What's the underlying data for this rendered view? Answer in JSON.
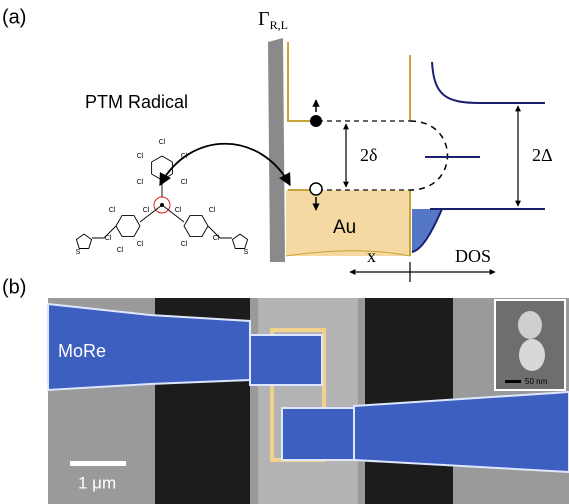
{
  "panel_a": {
    "label": "(a)",
    "gamma_label": "Γ",
    "gamma_subscript": "R,L",
    "molecule_name": "PTM Radical",
    "small_gap": "2δ",
    "big_gap": "2Δ",
    "electrode": "Au",
    "x_axis": "x",
    "dos_axis": "DOS",
    "molecule_atoms": [
      "Cl",
      "Cl",
      "Cl",
      "Cl",
      "Cl",
      "Cl",
      "Cl",
      "Cl",
      "Cl",
      "Cl",
      "Cl",
      "Cl",
      "Cl",
      "Cl",
      "S",
      "S"
    ]
  },
  "panel_b": {
    "label": "(b)",
    "material": "MoRe",
    "scale_bar": "1 μm",
    "inset_scale_bar": "50 nm"
  }
}
